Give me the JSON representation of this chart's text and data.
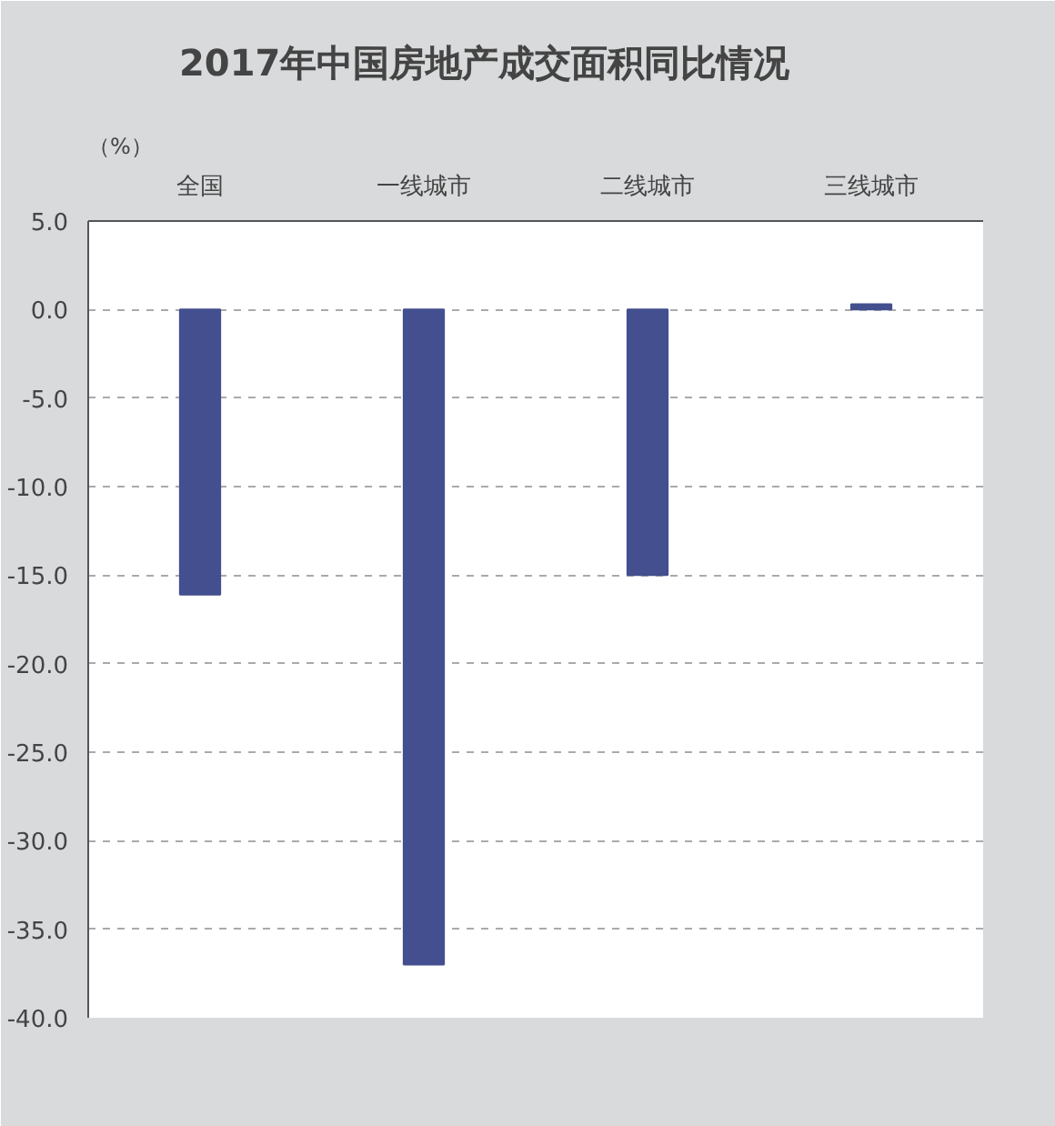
{
  "chart_data": {
    "type": "bar",
    "title": "2017年中国房地产成交面积同比情况",
    "ylabel": "（%）",
    "categories": [
      "全国",
      "一线城市",
      "二线城市",
      "三线城市"
    ],
    "values": [
      -16.1,
      -37.0,
      -15.0,
      0.3
    ],
    "color": "#434f8f",
    "ylim": [
      -40,
      5
    ],
    "yticks": [
      {
        "value": 5,
        "label": "5.0"
      },
      {
        "value": 0,
        "label": "0.0"
      },
      {
        "value": -5,
        "label": "-5.0"
      },
      {
        "value": -10,
        "label": "-10.0"
      },
      {
        "value": -15,
        "label": "-15.0"
      },
      {
        "value": -20,
        "label": "-20.0"
      },
      {
        "value": -25,
        "label": "-25.0"
      },
      {
        "value": -30,
        "label": "-30.0"
      },
      {
        "value": -35,
        "label": "-35.0"
      },
      {
        "value": -40,
        "label": "-40.0"
      }
    ],
    "grid": "y"
  }
}
